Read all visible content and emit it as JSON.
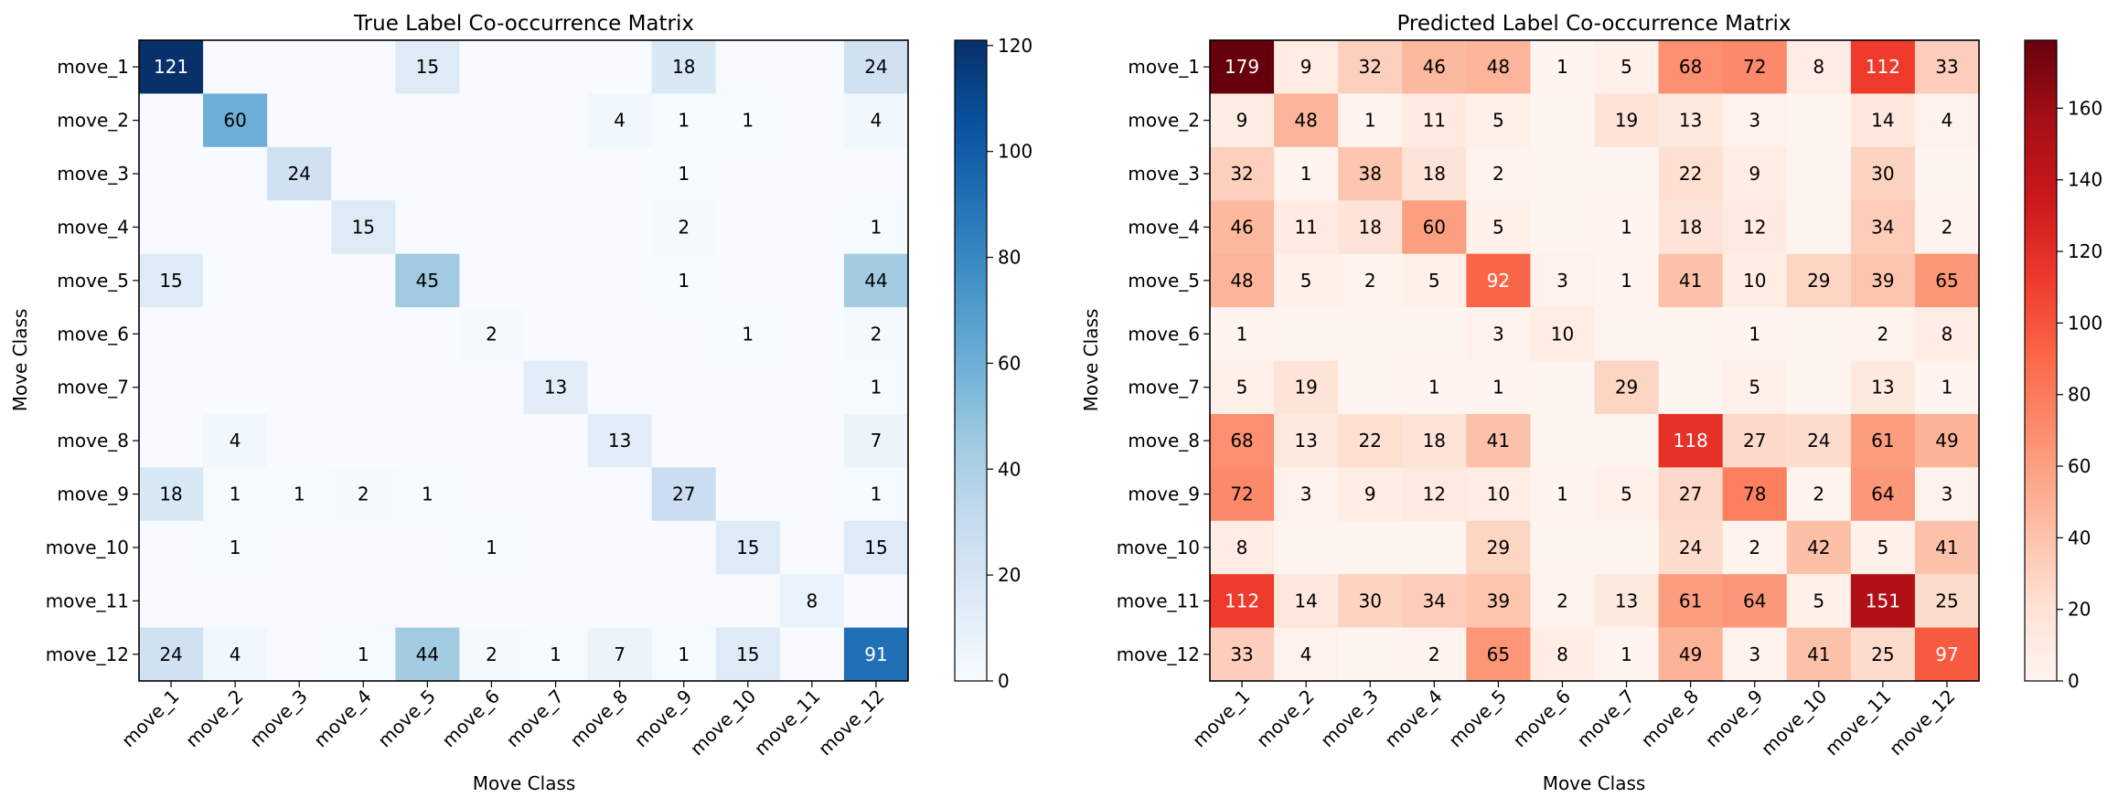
{
  "chart_data": [
    {
      "type": "heatmap",
      "title": "True Label Co-occurrence Matrix",
      "xlabel": "Move Class",
      "ylabel": "Move Class",
      "colormap": "Blues",
      "vmin": 0,
      "vmax": 121,
      "colorbar_ticks": [
        0,
        20,
        40,
        60,
        80,
        100,
        120
      ],
      "labels": [
        "move_1",
        "move_2",
        "move_3",
        "move_4",
        "move_5",
        "move_6",
        "move_7",
        "move_8",
        "move_9",
        "move_10",
        "move_11",
        "move_12"
      ],
      "matrix": [
        [
          121,
          0,
          0,
          0,
          15,
          0,
          0,
          0,
          18,
          0,
          0,
          24
        ],
        [
          0,
          60,
          0,
          0,
          0,
          0,
          0,
          4,
          1,
          1,
          0,
          4
        ],
        [
          0,
          0,
          24,
          0,
          0,
          0,
          0,
          0,
          1,
          0,
          0,
          0
        ],
        [
          0,
          0,
          0,
          15,
          0,
          0,
          0,
          0,
          2,
          0,
          0,
          1
        ],
        [
          15,
          0,
          0,
          0,
          45,
          0,
          0,
          0,
          1,
          0,
          0,
          44
        ],
        [
          0,
          0,
          0,
          0,
          0,
          2,
          0,
          0,
          0,
          1,
          0,
          2
        ],
        [
          0,
          0,
          0,
          0,
          0,
          0,
          13,
          0,
          0,
          0,
          0,
          1
        ],
        [
          0,
          4,
          0,
          0,
          0,
          0,
          0,
          13,
          0,
          0,
          0,
          7
        ],
        [
          18,
          1,
          1,
          2,
          1,
          0,
          0,
          0,
          27,
          0,
          0,
          1
        ],
        [
          0,
          1,
          0,
          0,
          0,
          1,
          0,
          0,
          0,
          15,
          0,
          15
        ],
        [
          0,
          0,
          0,
          0,
          0,
          0,
          0,
          0,
          0,
          0,
          8,
          0
        ],
        [
          24,
          4,
          0,
          1,
          44,
          2,
          1,
          7,
          1,
          15,
          0,
          91
        ]
      ]
    },
    {
      "type": "heatmap",
      "title": "Predicted Label Co-occurrence Matrix",
      "xlabel": "Move Class",
      "ylabel": "Move Class",
      "colormap": "Reds",
      "vmin": 0,
      "vmax": 179,
      "colorbar_ticks": [
        0,
        20,
        40,
        60,
        80,
        100,
        120,
        140,
        160
      ],
      "labels": [
        "move_1",
        "move_2",
        "move_3",
        "move_4",
        "move_5",
        "move_6",
        "move_7",
        "move_8",
        "move_9",
        "move_10",
        "move_11",
        "move_12"
      ],
      "matrix": [
        [
          179,
          9,
          32,
          46,
          48,
          1,
          5,
          68,
          72,
          8,
          112,
          33
        ],
        [
          9,
          48,
          1,
          11,
          5,
          0,
          19,
          13,
          3,
          0,
          14,
          4
        ],
        [
          32,
          1,
          38,
          18,
          2,
          0,
          0,
          22,
          9,
          0,
          30,
          0
        ],
        [
          46,
          11,
          18,
          60,
          5,
          0,
          1,
          18,
          12,
          0,
          34,
          2
        ],
        [
          48,
          5,
          2,
          5,
          92,
          3,
          1,
          41,
          10,
          29,
          39,
          65
        ],
        [
          1,
          0,
          0,
          0,
          3,
          10,
          0,
          0,
          1,
          0,
          2,
          8
        ],
        [
          5,
          19,
          0,
          1,
          1,
          0,
          29,
          0,
          5,
          0,
          13,
          1
        ],
        [
          68,
          13,
          22,
          18,
          41,
          0,
          0,
          118,
          27,
          24,
          61,
          49
        ],
        [
          72,
          3,
          9,
          12,
          10,
          1,
          5,
          27,
          78,
          2,
          64,
          3
        ],
        [
          8,
          0,
          0,
          0,
          29,
          0,
          0,
          24,
          2,
          42,
          5,
          41
        ],
        [
          112,
          14,
          30,
          34,
          39,
          2,
          13,
          61,
          64,
          5,
          151,
          25
        ],
        [
          33,
          4,
          0,
          2,
          65,
          8,
          1,
          49,
          3,
          41,
          25,
          97
        ]
      ]
    }
  ]
}
